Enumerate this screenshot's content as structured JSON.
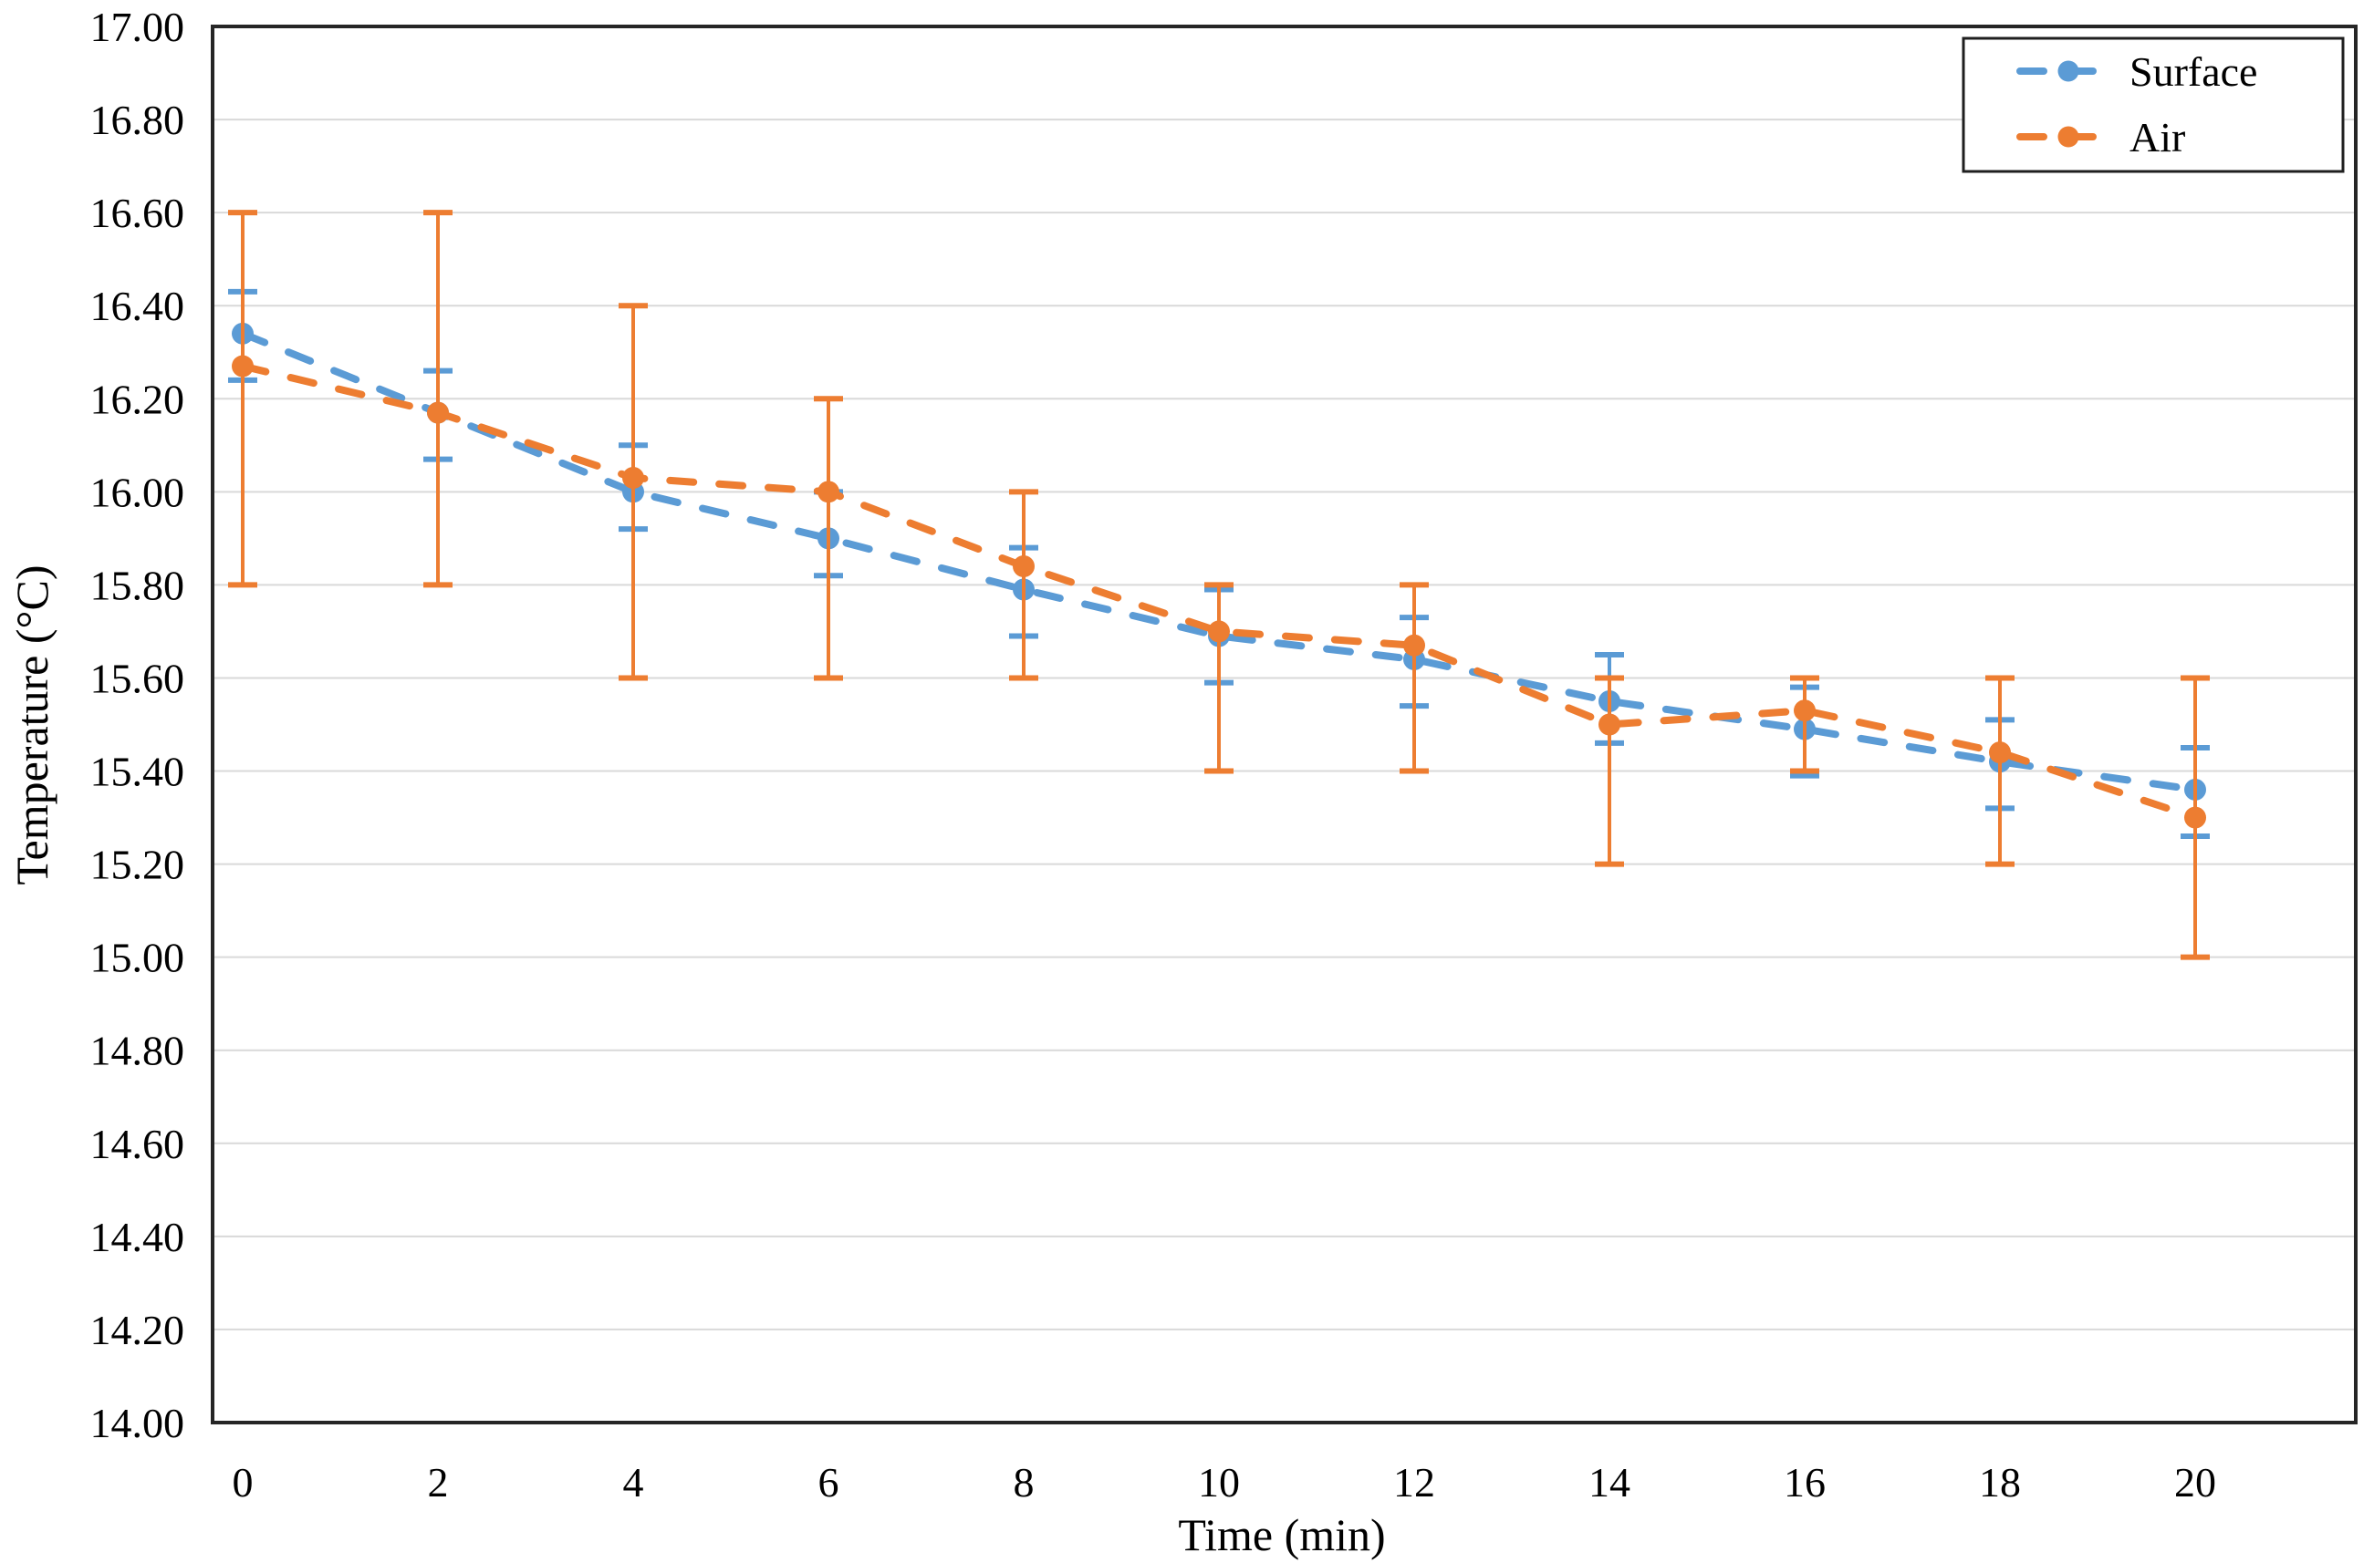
{
  "chart_data": {
    "type": "line",
    "title": "",
    "xlabel": "Time (min)",
    "ylabel": "Temperature (°C)",
    "x": [
      0,
      2,
      4,
      6,
      8,
      10,
      12,
      14,
      16,
      18,
      20
    ],
    "xtick_labels": [
      "0",
      "2",
      "4",
      "6",
      "8",
      "10",
      "12",
      "14",
      "16",
      "18",
      "20"
    ],
    "ytick_labels": [
      "17.00",
      "16.80",
      "16.60",
      "16.40",
      "16.20",
      "16.00",
      "15.80",
      "15.60",
      "15.40",
      "15.20",
      "15.00",
      "14.80",
      "14.60",
      "14.40",
      "14.20",
      "14.00"
    ],
    "ylim": [
      14.0,
      17.0
    ],
    "ytick_step": 0.2,
    "grid": true,
    "legend_position": "top-right",
    "series": [
      {
        "name": "Surface",
        "color": "#5B9BD5",
        "line_style": "dashed",
        "marker": "circle",
        "values": [
          16.34,
          16.17,
          16.0,
          15.9,
          15.79,
          15.69,
          15.64,
          15.55,
          15.49,
          15.42,
          15.36
        ],
        "err_top": [
          16.43,
          16.26,
          16.1,
          16.0,
          15.88,
          15.79,
          15.73,
          15.65,
          15.58,
          15.51,
          15.45
        ],
        "err_bottom": [
          16.24,
          16.07,
          15.92,
          15.82,
          15.69,
          15.59,
          15.54,
          15.46,
          15.39,
          15.32,
          15.26
        ]
      },
      {
        "name": "Air",
        "color": "#ED7D31",
        "line_style": "dashed",
        "marker": "circle",
        "values": [
          16.27,
          16.17,
          16.03,
          16.0,
          15.84,
          15.7,
          15.67,
          15.5,
          15.53,
          15.44,
          15.3
        ],
        "err_top": [
          16.6,
          16.6,
          16.4,
          16.2,
          16.0,
          15.8,
          15.8,
          15.6,
          15.6,
          15.6,
          15.6
        ],
        "err_bottom": [
          15.8,
          15.8,
          15.6,
          15.6,
          15.6,
          15.4,
          15.4,
          15.2,
          15.4,
          15.2,
          15.0
        ]
      }
    ],
    "colors": {
      "background": "#FFFFFF",
      "gridline": "#D9D9D9",
      "axis_border": "#262626",
      "text": "#000000"
    }
  }
}
